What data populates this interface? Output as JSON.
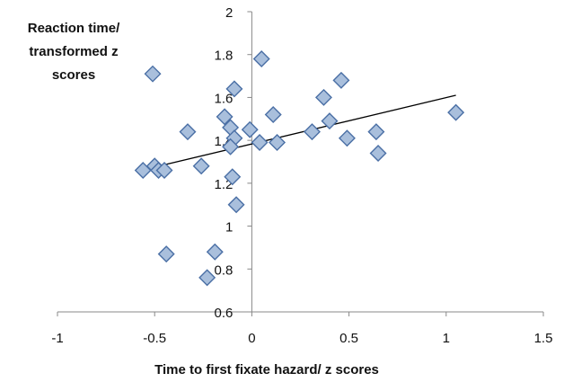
{
  "chart_data": {
    "type": "scatter",
    "xlabel": "Time to first fixate hazard/ z scores",
    "ylabel_lines": [
      "Reaction time/",
      "transformed z",
      "scores"
    ],
    "xlim": [
      -1,
      1.5
    ],
    "ylim": [
      0.6,
      2
    ],
    "x_ticks": [
      "-1",
      "-0.5",
      "0",
      "0.5",
      "1",
      "1.5"
    ],
    "y_ticks": [
      "0.6",
      "0.8",
      "1",
      "1.2",
      "1.4",
      "1.6",
      "1.8",
      "2"
    ],
    "grid": false,
    "marker": "diamond",
    "marker_fill": "#a9bfdc",
    "marker_stroke": "#4a6fa5",
    "trendline_color": "#000000",
    "points": [
      {
        "x": -0.51,
        "y": 1.71
      },
      {
        "x": 0.05,
        "y": 1.78
      },
      {
        "x": -0.09,
        "y": 1.64
      },
      {
        "x": 0.46,
        "y": 1.68
      },
      {
        "x": 0.37,
        "y": 1.6
      },
      {
        "x": -0.14,
        "y": 1.51
      },
      {
        "x": 0.11,
        "y": 1.52
      },
      {
        "x": -0.11,
        "y": 1.46
      },
      {
        "x": -0.01,
        "y": 1.45
      },
      {
        "x": -0.33,
        "y": 1.44
      },
      {
        "x": -0.09,
        "y": 1.41
      },
      {
        "x": 0.04,
        "y": 1.39
      },
      {
        "x": 0.13,
        "y": 1.39
      },
      {
        "x": 0.31,
        "y": 1.44
      },
      {
        "x": 0.4,
        "y": 1.49
      },
      {
        "x": 0.49,
        "y": 1.41
      },
      {
        "x": 0.64,
        "y": 1.44
      },
      {
        "x": 0.65,
        "y": 1.34
      },
      {
        "x": 1.05,
        "y": 1.53
      },
      {
        "x": -0.11,
        "y": 1.37
      },
      {
        "x": -0.26,
        "y": 1.28
      },
      {
        "x": -0.56,
        "y": 1.26
      },
      {
        "x": -0.5,
        "y": 1.28
      },
      {
        "x": -0.48,
        "y": 1.26
      },
      {
        "x": -0.45,
        "y": 1.26
      },
      {
        "x": -0.1,
        "y": 1.23
      },
      {
        "x": -0.08,
        "y": 1.1
      },
      {
        "x": -0.44,
        "y": 0.87
      },
      {
        "x": -0.19,
        "y": 0.88
      },
      {
        "x": -0.23,
        "y": 0.76
      }
    ],
    "trendline": {
      "x": [
        -0.57,
        1.05
      ],
      "y": [
        1.26,
        1.61
      ]
    }
  }
}
